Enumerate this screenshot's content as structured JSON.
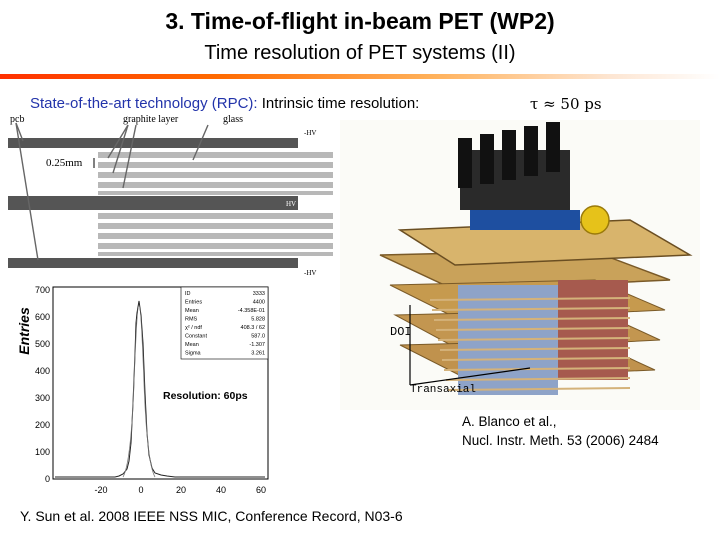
{
  "header": {
    "title": "3. Time-of-flight in-beam PET (WP2)",
    "subtitle": "Time resolution of PET systems (II)"
  },
  "intro": {
    "technology": "State-of-the-art technology (RPC):",
    "intrinsic": "Intrinsic time resolution:",
    "tau": "τ ≈ 50 ps"
  },
  "rpc_diagram": {
    "label_pcb": "pcb",
    "label_graphite": "graphite layer",
    "label_glass": "glass",
    "label_gap": "0.25mm",
    "label_minus_hv_top": "-HV",
    "label_hv": "HV",
    "label_minus_hv_bottom": "-HV"
  },
  "histogram": {
    "ylabel": "Entries",
    "y_ticks": [
      "700",
      "600",
      "500",
      "400",
      "300",
      "200",
      "100",
      "0"
    ],
    "x_ticks": [
      "-20",
      "0",
      "20",
      "40",
      "60"
    ],
    "resolution_label": "Resolution: 60ps",
    "stats": [
      {
        "name": "ID",
        "value": "3333"
      },
      {
        "name": "Entries",
        "value": "4400"
      },
      {
        "name": "Mean",
        "value": "-4.358E-01"
      },
      {
        "name": "RMS",
        "value": "5.828"
      },
      {
        "name": "χ² / ndf",
        "value": "408.3 / 62"
      },
      {
        "name": "Constant",
        "value": "587.0"
      },
      {
        "name": "Mean",
        "value": "-1.307"
      },
      {
        "name": "Sigma",
        "value": "3.261"
      }
    ]
  },
  "photo": {
    "label_doi": "DOI",
    "label_transaxial": "Transaxial"
  },
  "citations": {
    "blanco_line1": "A. Blanco et al.,",
    "blanco_line2": "Nucl. Instr. Meth. 53 (2006) 2484",
    "sun": "Y. Sun et al. 2008 IEEE NSS MIC, Conference Record, N03-6"
  }
}
